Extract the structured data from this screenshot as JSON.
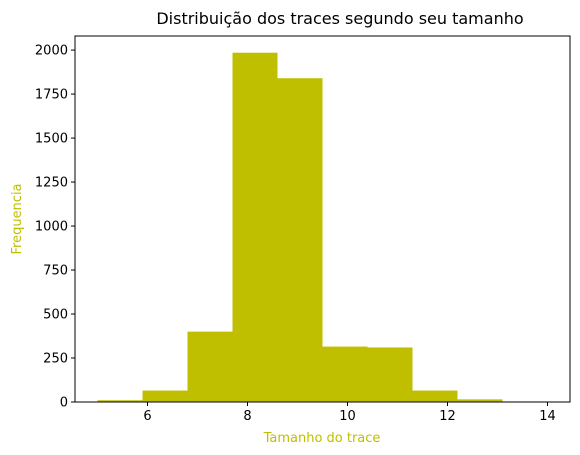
{
  "chart_data": {
    "type": "bar",
    "title": "Distribuição dos traces segundo seu tamanho",
    "xlabel": "Tamanho do trace",
    "ylabel": "Frequencia",
    "label_color": "#bfbf00",
    "bar_color": "#bfbf00",
    "xlim": [
      4.55,
      14.45
    ],
    "ylim": [
      0,
      2080
    ],
    "x_ticks": [
      6,
      8,
      10,
      12,
      14
    ],
    "y_ticks": [
      0,
      250,
      500,
      750,
      1000,
      1250,
      1500,
      1750,
      2000
    ],
    "bins": [
      {
        "start": 5.0,
        "end": 5.9,
        "value": 10
      },
      {
        "start": 5.9,
        "end": 6.8,
        "value": 65
      },
      {
        "start": 6.8,
        "end": 7.7,
        "value": 400
      },
      {
        "start": 7.7,
        "end": 8.6,
        "value": 1985
      },
      {
        "start": 8.6,
        "end": 9.5,
        "value": 1840
      },
      {
        "start": 9.5,
        "end": 10.4,
        "value": 315
      },
      {
        "start": 10.4,
        "end": 11.3,
        "value": 310
      },
      {
        "start": 11.3,
        "end": 12.2,
        "value": 65
      },
      {
        "start": 12.2,
        "end": 13.1,
        "value": 15
      },
      {
        "start": 13.1,
        "end": 14.0,
        "value": 3
      }
    ],
    "grid": false,
    "legend": "none"
  }
}
